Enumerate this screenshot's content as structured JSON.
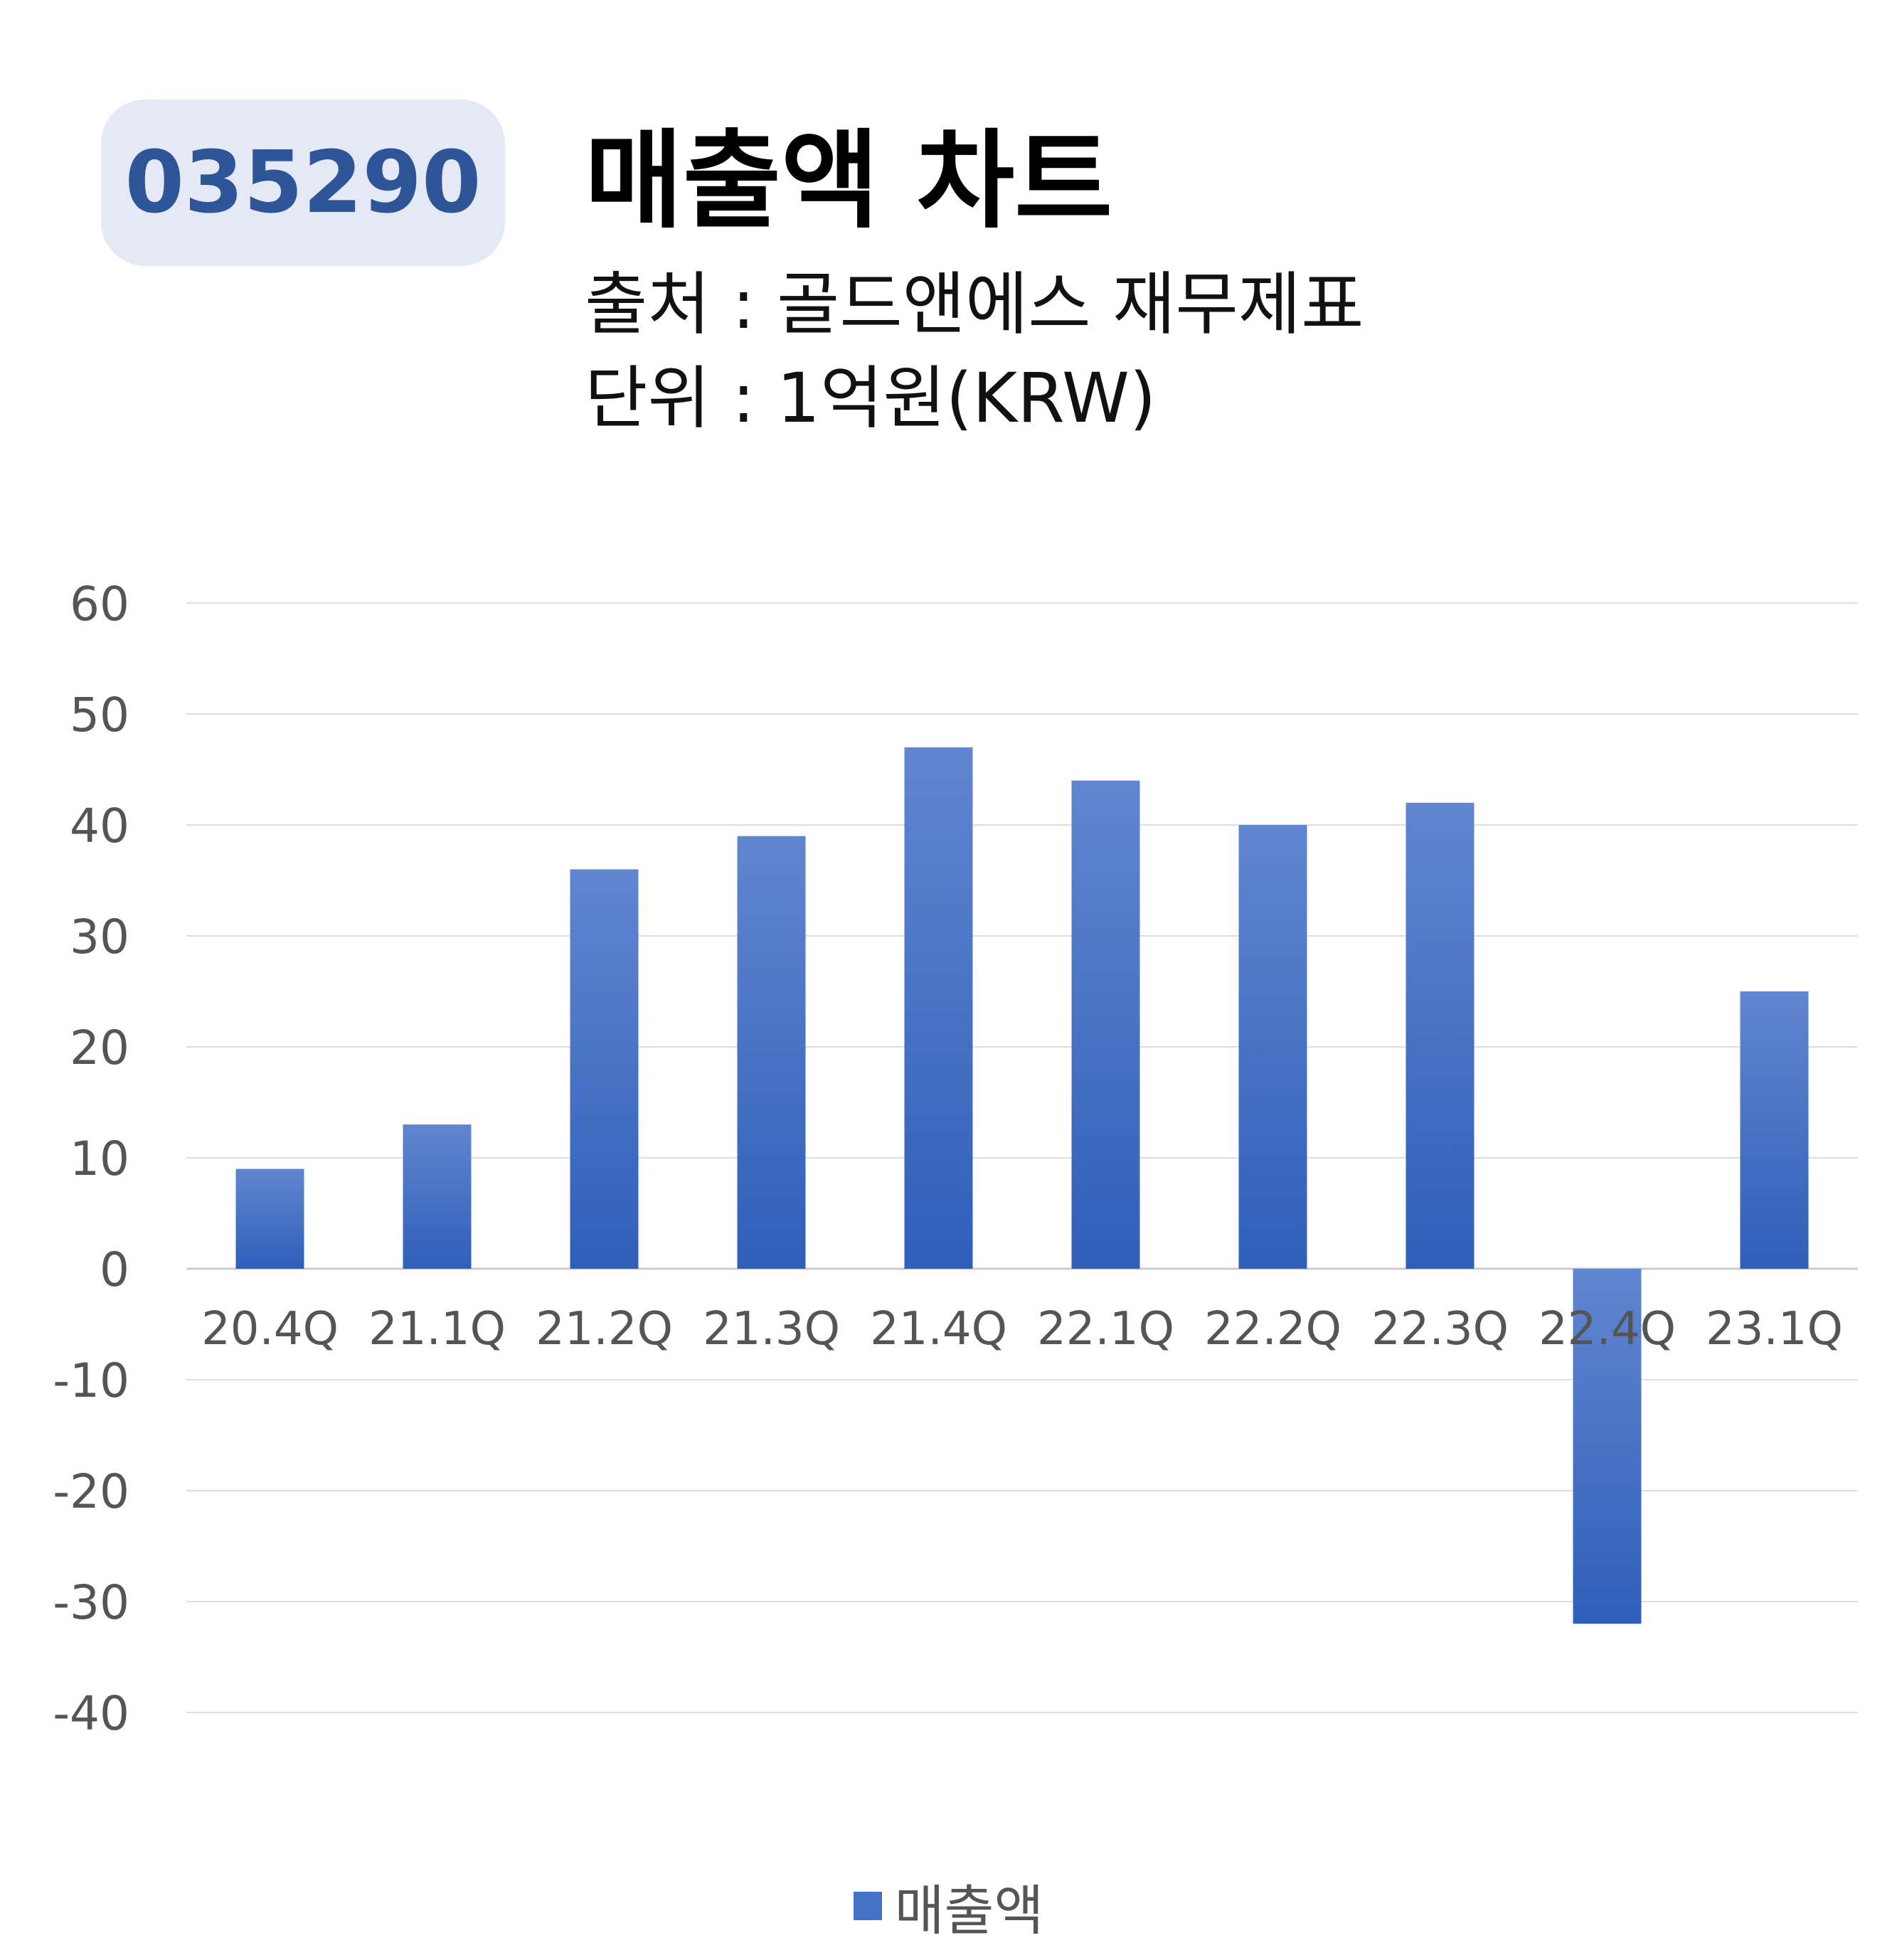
{
  "header": {
    "code": "035290",
    "title": "매출액 차트",
    "source": "출처 : 골드앤에스 재무제표",
    "unit": "단위 : 1억원(KRW)"
  },
  "chart_data": {
    "type": "bar",
    "categories": [
      "20.4Q",
      "21.1Q",
      "21.2Q",
      "21.3Q",
      "21.4Q",
      "22.1Q",
      "22.2Q",
      "22.3Q",
      "22.4Q",
      "23.1Q"
    ],
    "series": [
      {
        "name": "매출액",
        "values": [
          9,
          13,
          36,
          39,
          47,
          44,
          40,
          42,
          -32,
          25
        ],
        "color": "#4472c4"
      }
    ],
    "ylim": [
      -40,
      60
    ],
    "yticks": [
      60,
      50,
      40,
      30,
      20,
      10,
      0,
      -10,
      -20,
      -30,
      -40
    ],
    "grid": true,
    "legend": "bottom-center"
  }
}
